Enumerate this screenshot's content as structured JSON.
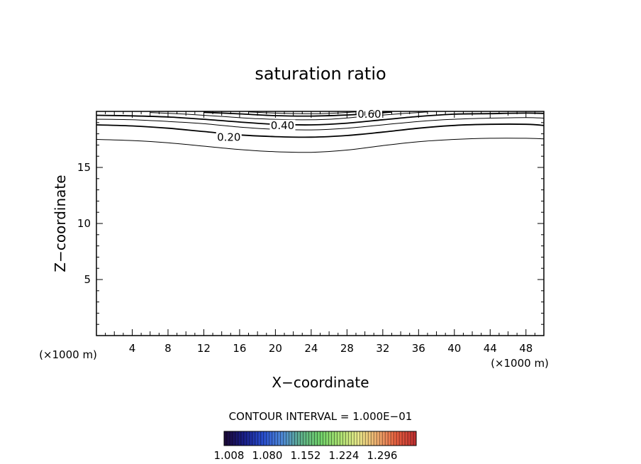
{
  "chart_data": {
    "type": "contour",
    "title": "saturation ratio",
    "xlabel": "X−coordinate",
    "ylabel": "Z−coordinate",
    "x_unit_label": "(×1000 m)",
    "y_unit_label": "(×1000 m)",
    "xlim": [
      0,
      50
    ],
    "ylim": [
      0,
      20
    ],
    "x_ticks": [
      4,
      8,
      12,
      16,
      20,
      24,
      28,
      32,
      36,
      40,
      44,
      48
    ],
    "y_ticks": [
      5,
      10,
      15
    ],
    "grid": false,
    "contour_interval_label": "CONTOUR INTERVAL = 1.000E−01",
    "contour_lines": [
      {
        "level": 0.1,
        "label": "",
        "points": [
          [
            0,
            17.5
          ],
          [
            4,
            17.4
          ],
          [
            8,
            17.2
          ],
          [
            12,
            16.9
          ],
          [
            16,
            16.6
          ],
          [
            20,
            16.4
          ],
          [
            24,
            16.35
          ],
          [
            28,
            16.55
          ],
          [
            32,
            16.95
          ],
          [
            36,
            17.3
          ],
          [
            40,
            17.5
          ],
          [
            44,
            17.6
          ],
          [
            48,
            17.6
          ],
          [
            50,
            17.55
          ]
        ]
      },
      {
        "level": 0.2,
        "label": "0.20",
        "label_at": [
          14.8,
          17.7
        ],
        "points": [
          [
            0,
            18.8
          ],
          [
            4,
            18.7
          ],
          [
            8,
            18.5
          ],
          [
            12,
            18.2
          ],
          [
            16,
            17.9
          ],
          [
            20,
            17.75
          ],
          [
            24,
            17.7
          ],
          [
            28,
            17.85
          ],
          [
            32,
            18.15
          ],
          [
            36,
            18.5
          ],
          [
            40,
            18.75
          ],
          [
            44,
            18.85
          ],
          [
            48,
            18.85
          ],
          [
            50,
            18.75
          ]
        ]
      },
      {
        "level": 0.3,
        "label": "",
        "points": [
          [
            0,
            19.3
          ],
          [
            4,
            19.25
          ],
          [
            8,
            19.1
          ],
          [
            12,
            18.9
          ],
          [
            16,
            18.6
          ],
          [
            20,
            18.4
          ],
          [
            24,
            18.35
          ],
          [
            28,
            18.5
          ],
          [
            32,
            18.8
          ],
          [
            36,
            19.1
          ],
          [
            40,
            19.3
          ],
          [
            44,
            19.4
          ],
          [
            48,
            19.45
          ],
          [
            50,
            19.4
          ]
        ]
      },
      {
        "level": 0.4,
        "label": "0.40",
        "label_at": [
          20.8,
          18.75
        ],
        "points": [
          [
            0,
            19.65
          ],
          [
            4,
            19.6
          ],
          [
            8,
            19.5
          ],
          [
            12,
            19.3
          ],
          [
            16,
            19.05
          ],
          [
            20,
            18.85
          ],
          [
            24,
            18.8
          ],
          [
            28,
            18.95
          ],
          [
            32,
            19.25
          ],
          [
            36,
            19.55
          ],
          [
            40,
            19.75
          ],
          [
            44,
            19.8
          ],
          [
            48,
            19.85
          ],
          [
            50,
            19.82
          ]
        ]
      },
      {
        "level": 0.5,
        "label": "",
        "points": [
          [
            6,
            19.9
          ],
          [
            10,
            19.75
          ],
          [
            14,
            19.55
          ],
          [
            18,
            19.35
          ],
          [
            22,
            19.25
          ],
          [
            26,
            19.3
          ],
          [
            30,
            19.55
          ],
          [
            34,
            19.8
          ],
          [
            37,
            19.95
          ]
        ]
      },
      {
        "level": 0.6,
        "label": "0.60",
        "label_at": [
          30.5,
          19.75
        ],
        "points": [
          [
            12,
            19.92
          ],
          [
            16,
            19.78
          ],
          [
            20,
            19.62
          ],
          [
            24,
            19.58
          ],
          [
            28,
            19.68
          ],
          [
            31,
            19.82
          ],
          [
            33,
            19.95
          ]
        ]
      },
      {
        "level": 0.7,
        "label": "",
        "points": [
          [
            17,
            19.95
          ],
          [
            21,
            19.82
          ],
          [
            25,
            19.8
          ],
          [
            29,
            19.95
          ]
        ]
      }
    ],
    "colorbar": {
      "tick_labels": [
        "1.008",
        "1.080",
        "1.152",
        "1.224",
        "1.296"
      ],
      "colors": [
        "#1b0a3a",
        "#1a1f8a",
        "#2a4fd0",
        "#4f8ad8",
        "#5fb08a",
        "#6fd06a",
        "#a8e070",
        "#e8e88a",
        "#f0b070",
        "#e86040",
        "#c43232"
      ]
    }
  }
}
